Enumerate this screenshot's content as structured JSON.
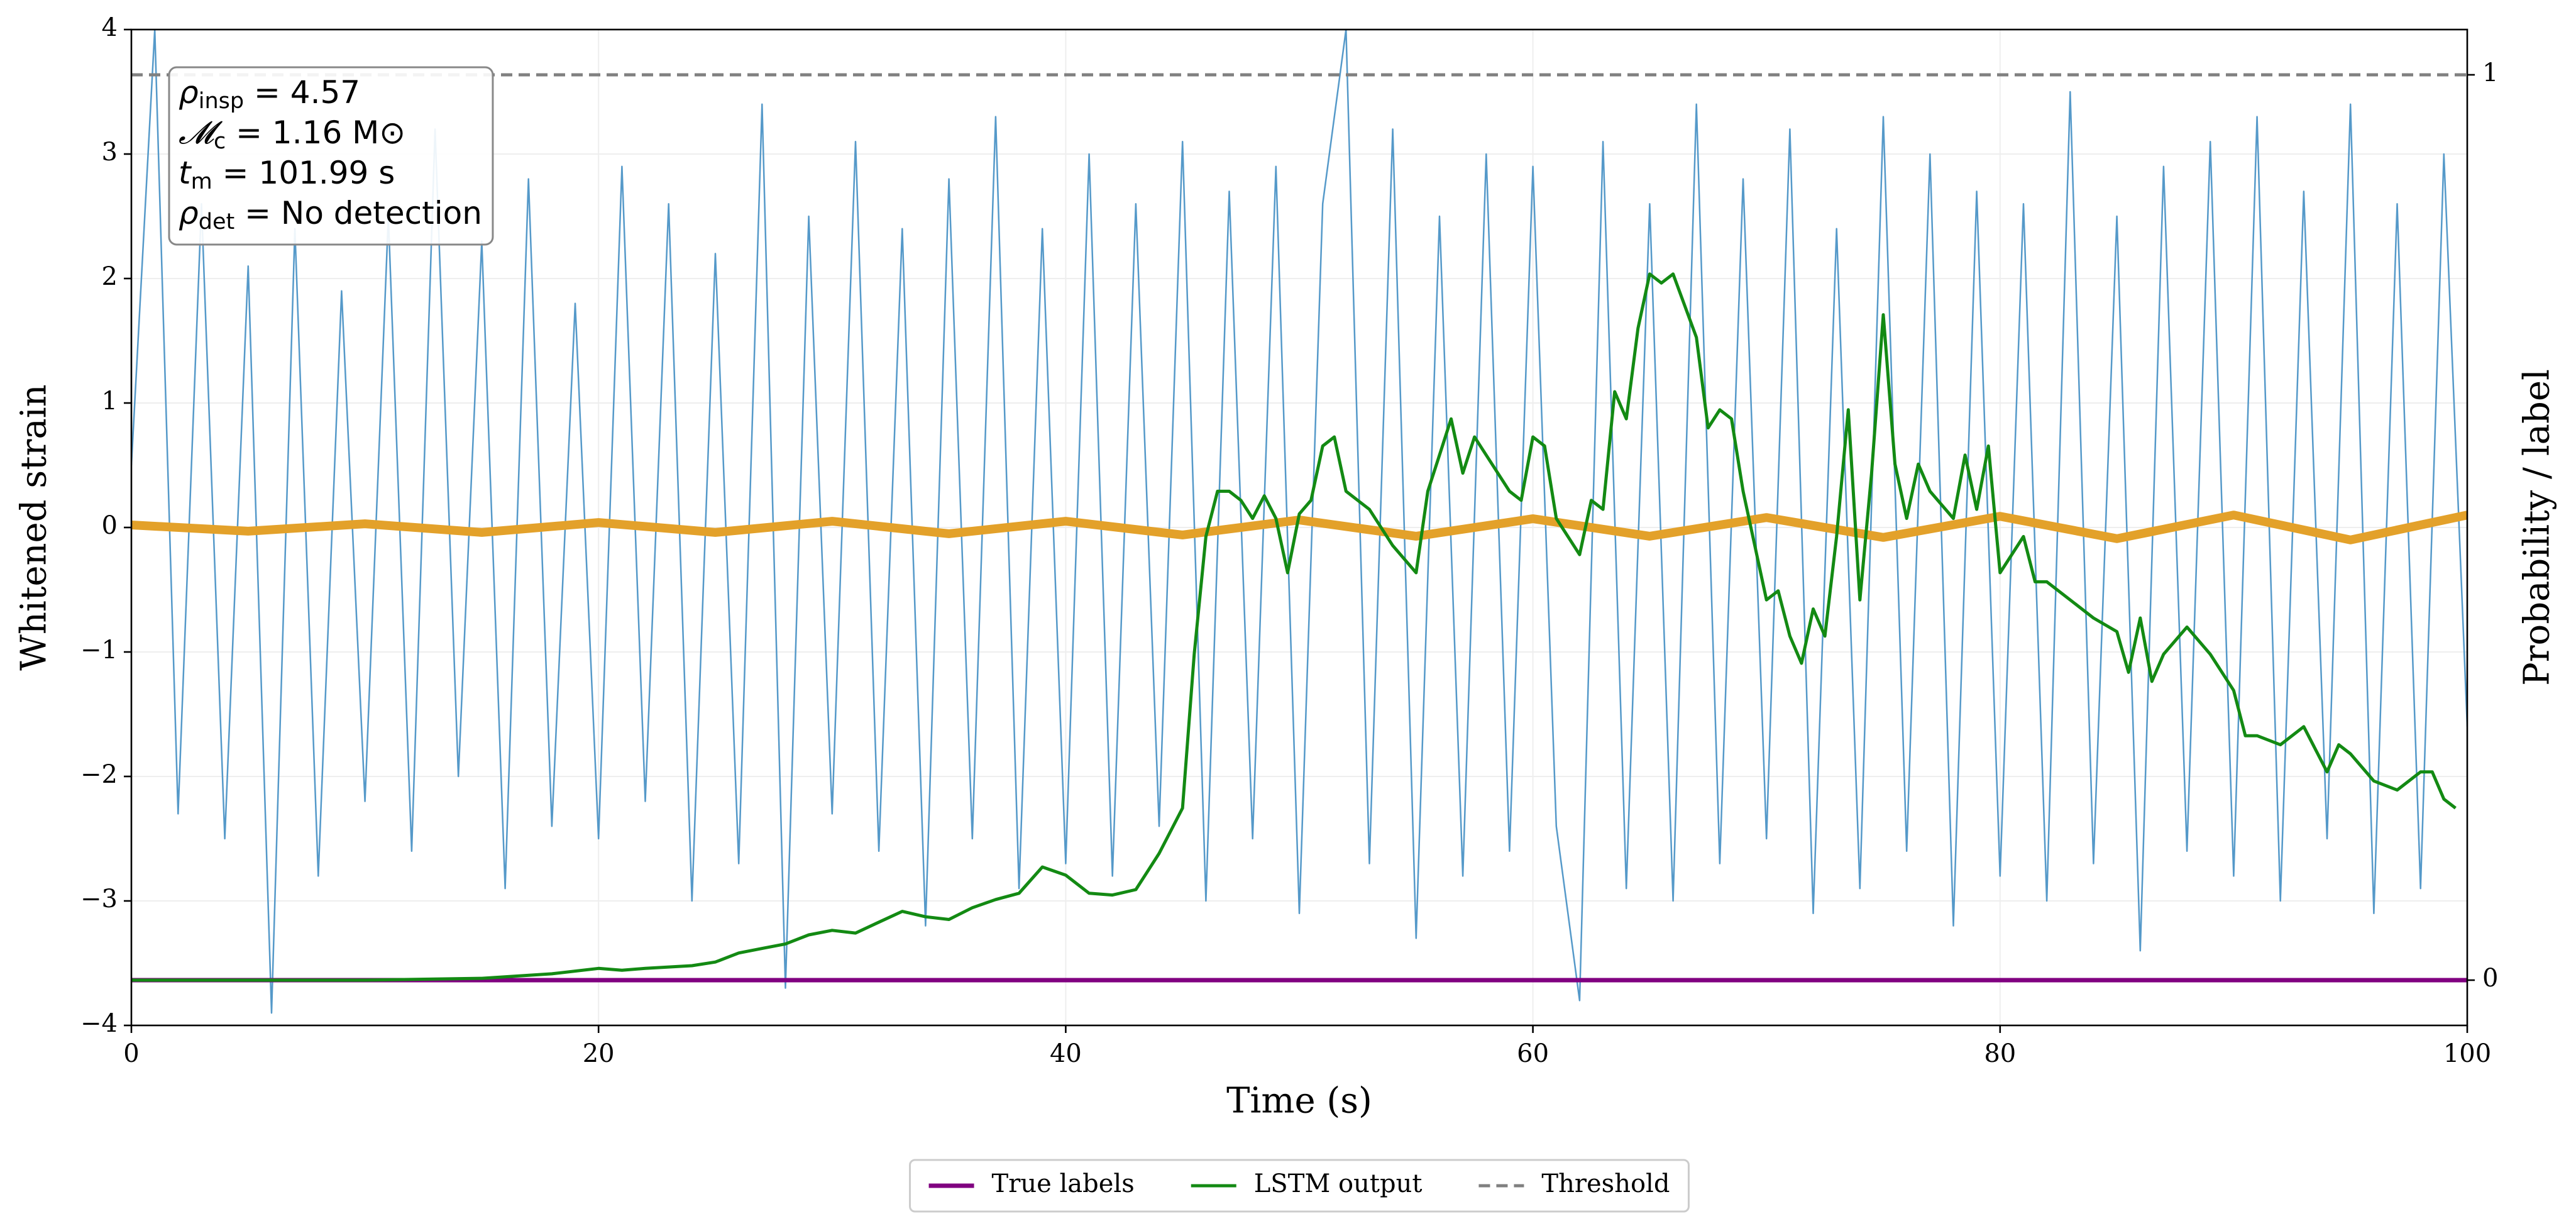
{
  "chart_data": {
    "type": "line",
    "xlabel": "Time (s)",
    "ylabel": "Whitened strain",
    "y2label": "Probability / label",
    "xlim": [
      0,
      100
    ],
    "xticks": [
      0,
      20,
      40,
      60,
      80,
      100
    ],
    "ylim": [
      -4,
      4
    ],
    "yticks": [
      {
        "value": -4,
        "label": "−4"
      },
      {
        "value": -3,
        "label": "−3"
      },
      {
        "value": -2,
        "label": "−2"
      },
      {
        "value": -1,
        "label": "−1"
      },
      0,
      1,
      2,
      3,
      4
    ],
    "y2lim": [
      -0.05,
      1.05
    ],
    "y2ticks": [
      0,
      1
    ],
    "grid": true,
    "legend": "lower center outside",
    "annotations": [
      {
        "symbol": "ρ",
        "subscript": "insp",
        "text": " = 4.57"
      },
      {
        "symbol": "𝓜",
        "subscript": "c",
        "text": " = 1.16 M⊙"
      },
      {
        "symbol": "t",
        "subscript": "m",
        "text": " = 101.99 s"
      },
      {
        "symbol": "ρ",
        "subscript": "det",
        "text": " = No detection"
      }
    ],
    "series": [
      {
        "color": "#5599c9",
        "axis": "y",
        "x": [
          0,
          1,
          2,
          3,
          4,
          5,
          6,
          7,
          8,
          9,
          10,
          11,
          12,
          13,
          14,
          15,
          16,
          17,
          18,
          19,
          20,
          21,
          22,
          23,
          24,
          25,
          26,
          27,
          28,
          29,
          30,
          31,
          32,
          33,
          34,
          35,
          36,
          37,
          38,
          39,
          40,
          41,
          42,
          43,
          44,
          45,
          46,
          47,
          48,
          49,
          50,
          51,
          52,
          53,
          54,
          55,
          56,
          57,
          58,
          59,
          60,
          61,
          62,
          63,
          64,
          65,
          66,
          67,
          68,
          69,
          70,
          71,
          72,
          73,
          74,
          75,
          76,
          77,
          78,
          79,
          80,
          81,
          82,
          83,
          84,
          85,
          86,
          87,
          88,
          89,
          90,
          91,
          92,
          93,
          94,
          95,
          96,
          97,
          98,
          99,
          100
        ],
        "values": [
          0.5,
          4.0,
          -2.3,
          2.6,
          -2.5,
          2.1,
          -3.9,
          2.4,
          -2.8,
          1.9,
          -2.2,
          2.5,
          -2.6,
          3.2,
          -2.0,
          2.3,
          -2.9,
          2.8,
          -2.4,
          1.8,
          -2.5,
          2.9,
          -2.2,
          2.6,
          -3.0,
          2.2,
          -2.7,
          3.4,
          -3.7,
          2.5,
          -2.3,
          3.1,
          -2.6,
          2.4,
          -3.2,
          2.8,
          -2.5,
          3.3,
          -2.9,
          2.4,
          -2.7,
          3.0,
          -2.8,
          2.6,
          -2.4,
          3.1,
          -3.0,
          2.7,
          -2.5,
          2.9,
          -3.1,
          2.6,
          4.0,
          -2.7,
          3.2,
          -3.3,
          2.5,
          -2.8,
          3.0,
          -2.6,
          2.9,
          -2.4,
          -3.8,
          3.1,
          -2.9,
          2.6,
          -3.0,
          3.4,
          -2.7,
          2.8,
          -2.5,
          3.2,
          -3.1,
          2.4,
          -2.9,
          3.3,
          -2.6,
          3.0,
          -3.2,
          2.7,
          -2.8,
          2.6,
          -3.0,
          3.5,
          -2.7,
          2.5,
          -3.4,
          2.9,
          -2.6,
          3.1,
          -2.8,
          3.3,
          -3.0,
          2.7,
          -2.5,
          3.4,
          -3.1,
          2.6,
          -2.9,
          3.0,
          -1.6
        ]
      },
      {
        "color": "#e3a12a",
        "axis": "y",
        "x": [
          0,
          5,
          10,
          15,
          20,
          25,
          30,
          35,
          40,
          45,
          50,
          55,
          60,
          65,
          70,
          75,
          80,
          85,
          90,
          95,
          100
        ],
        "values": [
          0.02,
          -0.03,
          0.03,
          -0.04,
          0.04,
          -0.04,
          0.05,
          -0.05,
          0.05,
          -0.06,
          0.06,
          -0.07,
          0.07,
          -0.07,
          0.08,
          -0.08,
          0.09,
          -0.09,
          0.1,
          -0.1,
          0.1
        ]
      },
      {
        "name": "True labels",
        "color": "#800080",
        "axis": "y2",
        "x": [
          0,
          100
        ],
        "values": [
          0,
          0
        ]
      },
      {
        "name": "LSTM output",
        "color": "#138a13",
        "axis": "y2",
        "x": [
          0,
          5,
          10,
          15,
          18,
          20,
          21,
          22,
          24,
          25,
          26,
          27,
          28,
          29,
          30,
          31,
          32,
          33,
          34,
          35,
          36,
          37,
          38,
          39,
          40,
          41,
          42,
          43,
          43.5,
          44,
          45,
          45.5,
          46,
          46.5,
          47,
          47.5,
          48,
          48.5,
          49,
          49.5,
          50,
          50.5,
          51,
          51.5,
          52,
          53,
          54,
          55,
          55.5,
          56,
          56.5,
          57,
          57.5,
          58,
          59,
          59.5,
          60,
          60.5,
          61,
          62,
          62.5,
          63,
          63.5,
          64,
          64.5,
          65,
          65.5,
          66,
          67,
          67.5,
          68,
          68.5,
          69,
          70,
          70.5,
          71,
          71.5,
          72,
          72.5,
          73,
          73.5,
          74,
          74.5,
          75,
          75.5,
          76,
          76.5,
          77,
          78,
          78.5,
          79,
          79.5,
          80,
          81,
          81.5,
          82,
          83,
          84,
          85,
          85.5,
          86,
          86.5,
          87,
          88,
          89,
          90,
          90.5,
          91,
          92,
          93,
          94,
          94.5,
          95,
          96,
          97,
          98,
          98.5,
          99,
          99.5
        ],
        "values": [
          0,
          0,
          0,
          0.002,
          0.007,
          0.013,
          0.011,
          0.013,
          0.016,
          0.02,
          0.03,
          0.035,
          0.04,
          0.05,
          0.055,
          0.052,
          0.064,
          0.076,
          0.07,
          0.067,
          0.08,
          0.089,
          0.096,
          0.125,
          0.116,
          0.096,
          0.094,
          0.1,
          0.12,
          0.14,
          0.19,
          0.36,
          0.49,
          0.54,
          0.54,
          0.53,
          0.51,
          0.535,
          0.51,
          0.45,
          0.515,
          0.53,
          0.59,
          0.6,
          0.54,
          0.52,
          0.48,
          0.45,
          0.54,
          0.58,
          0.62,
          0.56,
          0.6,
          0.58,
          0.54,
          0.53,
          0.6,
          0.59,
          0.51,
          0.47,
          0.53,
          0.52,
          0.65,
          0.62,
          0.72,
          0.78,
          0.77,
          0.78,
          0.71,
          0.61,
          0.63,
          0.62,
          0.54,
          0.42,
          0.43,
          0.38,
          0.35,
          0.41,
          0.38,
          0.49,
          0.63,
          0.42,
          0.56,
          0.735,
          0.57,
          0.51,
          0.57,
          0.54,
          0.51,
          0.58,
          0.52,
          0.59,
          0.45,
          0.49,
          0.44,
          0.44,
          0.42,
          0.4,
          0.385,
          0.34,
          0.4,
          0.33,
          0.36,
          0.39,
          0.36,
          0.32,
          0.27,
          0.27,
          0.26,
          0.28,
          0.23,
          0.26,
          0.25,
          0.22,
          0.21,
          0.23,
          0.23,
          0.2,
          0.19
        ]
      },
      {
        "name": "Threshold",
        "color": "#808080",
        "axis": "y2",
        "style": "dashed",
        "x": [
          0,
          100
        ],
        "values": [
          1,
          1
        ]
      }
    ]
  }
}
